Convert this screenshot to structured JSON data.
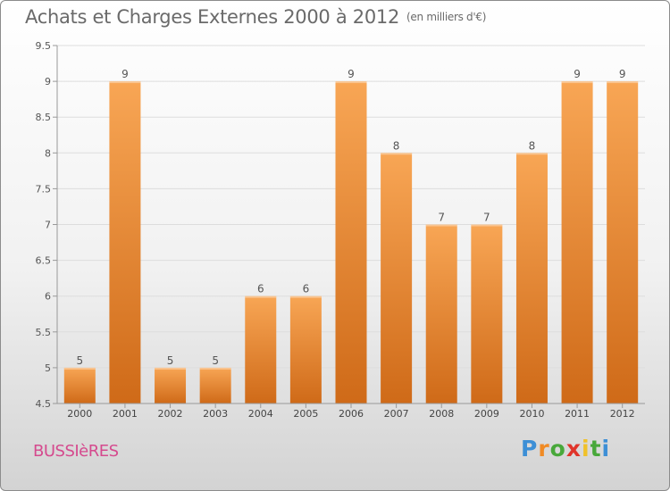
{
  "header": {
    "title": "Achats et Charges Externes 2000 à 2012",
    "subtitle": "(en milliers d'€)"
  },
  "footer": {
    "town": "BUSSIèRES",
    "logo": [
      "P",
      "r",
      "o",
      "x",
      "i",
      "t",
      "i"
    ]
  },
  "colors": {
    "bar_light": "#f8a655",
    "bar_dark": "#cf6a18",
    "axis_text": "#555555",
    "grid": "#dddddd",
    "town": "#d54a8e",
    "logo": [
      "#3d8fd6",
      "#f08a24",
      "#48a83a",
      "#e0342a",
      "#f0c12a",
      "#48a83a",
      "#3d8fd6"
    ]
  },
  "chart_data": {
    "type": "bar",
    "categories": [
      "2000",
      "2001",
      "2002",
      "2003",
      "2004",
      "2005",
      "2006",
      "2007",
      "2008",
      "2009",
      "2010",
      "2011",
      "2012"
    ],
    "values": [
      5,
      9,
      5,
      5,
      6,
      6,
      9,
      8,
      7,
      7,
      8,
      9,
      9
    ],
    "ylim": [
      4.5,
      9.5
    ],
    "yticks": [
      "4.5",
      "5",
      "5.5",
      "6",
      "6.5",
      "7",
      "7.5",
      "8",
      "8.5",
      "9",
      "9.5"
    ],
    "grid": true,
    "title": "Achats et Charges Externes 2000 à 2012",
    "xlabel": "",
    "ylabel": ""
  }
}
